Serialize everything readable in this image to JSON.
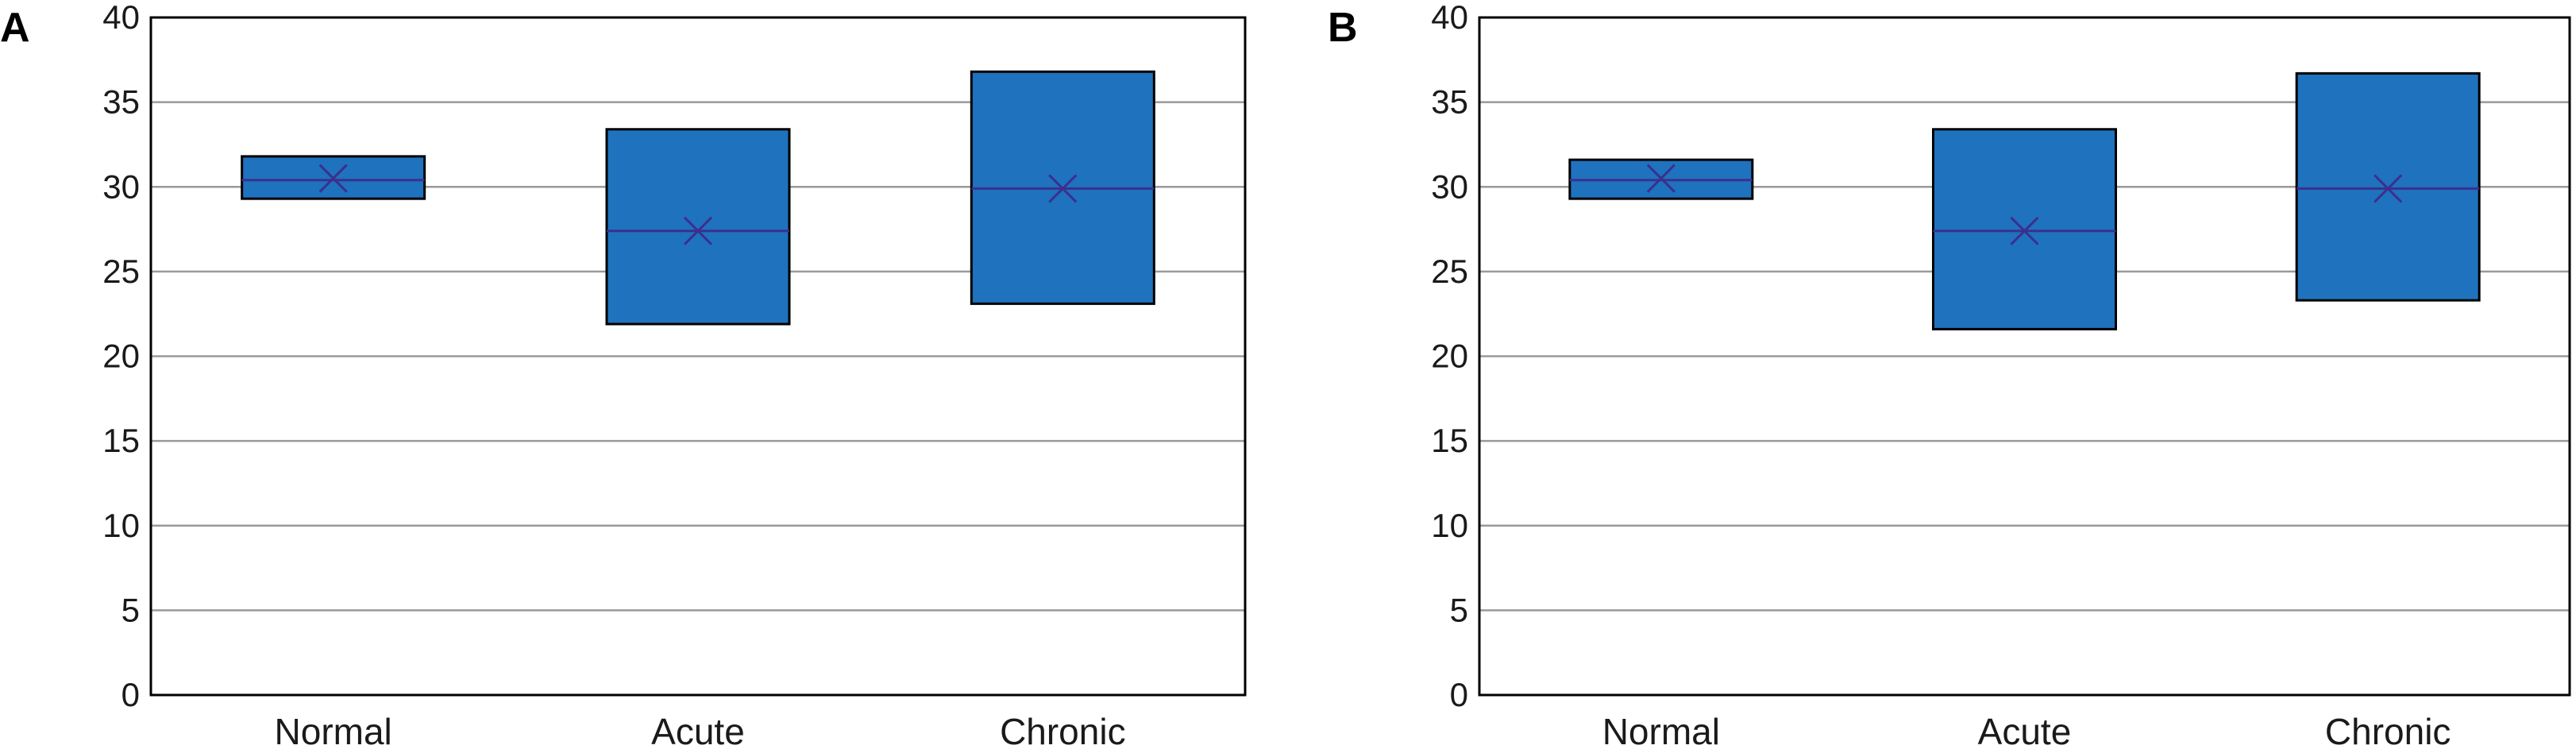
{
  "chart_data": [
    {
      "type": "box",
      "panel": "A",
      "categories": [
        "Normal",
        "Acute",
        "Chronic"
      ],
      "boxes": [
        {
          "q1": 29.3,
          "median": 30.4,
          "q3": 31.8,
          "mean": 30.5
        },
        {
          "q1": 21.9,
          "median": 27.4,
          "q3": 33.4,
          "mean": 27.4
        },
        {
          "q1": 23.1,
          "median": 29.9,
          "q3": 36.8,
          "mean": 29.9
        }
      ],
      "yticks": [
        "0",
        "5",
        "10",
        "15",
        "20",
        "25",
        "30",
        "35",
        "40"
      ],
      "ylim": [
        0,
        40
      ],
      "grid": true
    },
    {
      "type": "box",
      "panel": "B",
      "categories": [
        "Normal",
        "Acute",
        "Chronic"
      ],
      "boxes": [
        {
          "q1": 29.3,
          "median": 30.4,
          "q3": 31.6,
          "mean": 30.5
        },
        {
          "q1": 21.6,
          "median": 27.4,
          "q3": 33.4,
          "mean": 27.4
        },
        {
          "q1": 23.3,
          "median": 29.9,
          "q3": 36.7,
          "mean": 29.9
        }
      ],
      "yticks": [
        "0",
        "5",
        "10",
        "15",
        "20",
        "25",
        "30",
        "35",
        "40"
      ],
      "ylim": [
        0,
        40
      ],
      "grid": true
    }
  ],
  "colors": {
    "box_fill": "#1f72bd",
    "median_line": "#3b2f8f",
    "grid": "#9a9a9a"
  }
}
